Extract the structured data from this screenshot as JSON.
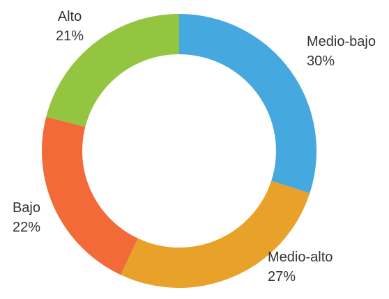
{
  "chart_data": {
    "type": "donut",
    "categories": [
      "Medio-bajo",
      "Medio-alto",
      "Bajo",
      "Alto"
    ],
    "values": [
      30,
      27,
      22,
      21
    ],
    "value_labels": [
      "30%",
      "27%",
      "22%",
      "21%"
    ],
    "colors": [
      "#45a8de",
      "#e8a22a",
      "#f26a38",
      "#93c540"
    ]
  }
}
